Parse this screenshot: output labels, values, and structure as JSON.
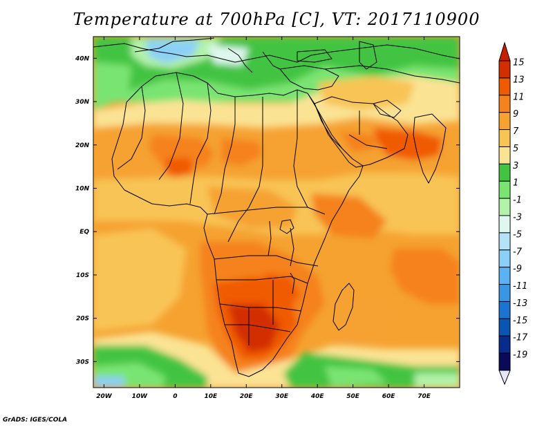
{
  "title": "Temperature at 700hPa [C], VT: 2017110900",
  "credit": "GrADS: IGES/COLA",
  "map": {
    "lon_range": [
      -23,
      80
    ],
    "lat_range": [
      -36,
      45
    ],
    "x_ticks": [
      {
        "lon": -20,
        "label": "20W"
      },
      {
        "lon": -10,
        "label": "10W"
      },
      {
        "lon": 0,
        "label": "0"
      },
      {
        "lon": 10,
        "label": "10E"
      },
      {
        "lon": 20,
        "label": "20E"
      },
      {
        "lon": 30,
        "label": "30E"
      },
      {
        "lon": 40,
        "label": "40E"
      },
      {
        "lon": 50,
        "label": "50E"
      },
      {
        "lon": 60,
        "label": "60E"
      },
      {
        "lon": 70,
        "label": "70E"
      }
    ],
    "y_ticks": [
      {
        "lat": 40,
        "label": "40N"
      },
      {
        "lat": 30,
        "label": "30N"
      },
      {
        "lat": 20,
        "label": "20N"
      },
      {
        "lat": 10,
        "label": "10N"
      },
      {
        "lat": 0,
        "label": "EQ"
      },
      {
        "lat": -10,
        "label": "10S"
      },
      {
        "lat": -20,
        "label": "20S"
      },
      {
        "lat": -30,
        "label": "30S"
      }
    ]
  },
  "colorbar": {
    "labels": [
      "15",
      "13",
      "11",
      "9",
      "7",
      "5",
      "3",
      "1",
      "-1",
      "-3",
      "-5",
      "-7",
      "-9",
      "-11",
      "-13",
      "-15",
      "-17",
      "-19"
    ],
    "colors": [
      "#d22e00",
      "#f05a00",
      "#f5821c",
      "#f5a231",
      "#f8c455",
      "#fbe394",
      "#42c442",
      "#7ae472",
      "#b2f2a9",
      "#dff7ef",
      "#b4e2f7",
      "#8cd0f7",
      "#5ab2f2",
      "#3a96e4",
      "#1c74d2",
      "#0a54b4",
      "#082c8c",
      "#0a0a5a"
    ],
    "top_triangle_color": "#c81e00",
    "bottom_triangle_color": "#e6e6f8"
  }
}
